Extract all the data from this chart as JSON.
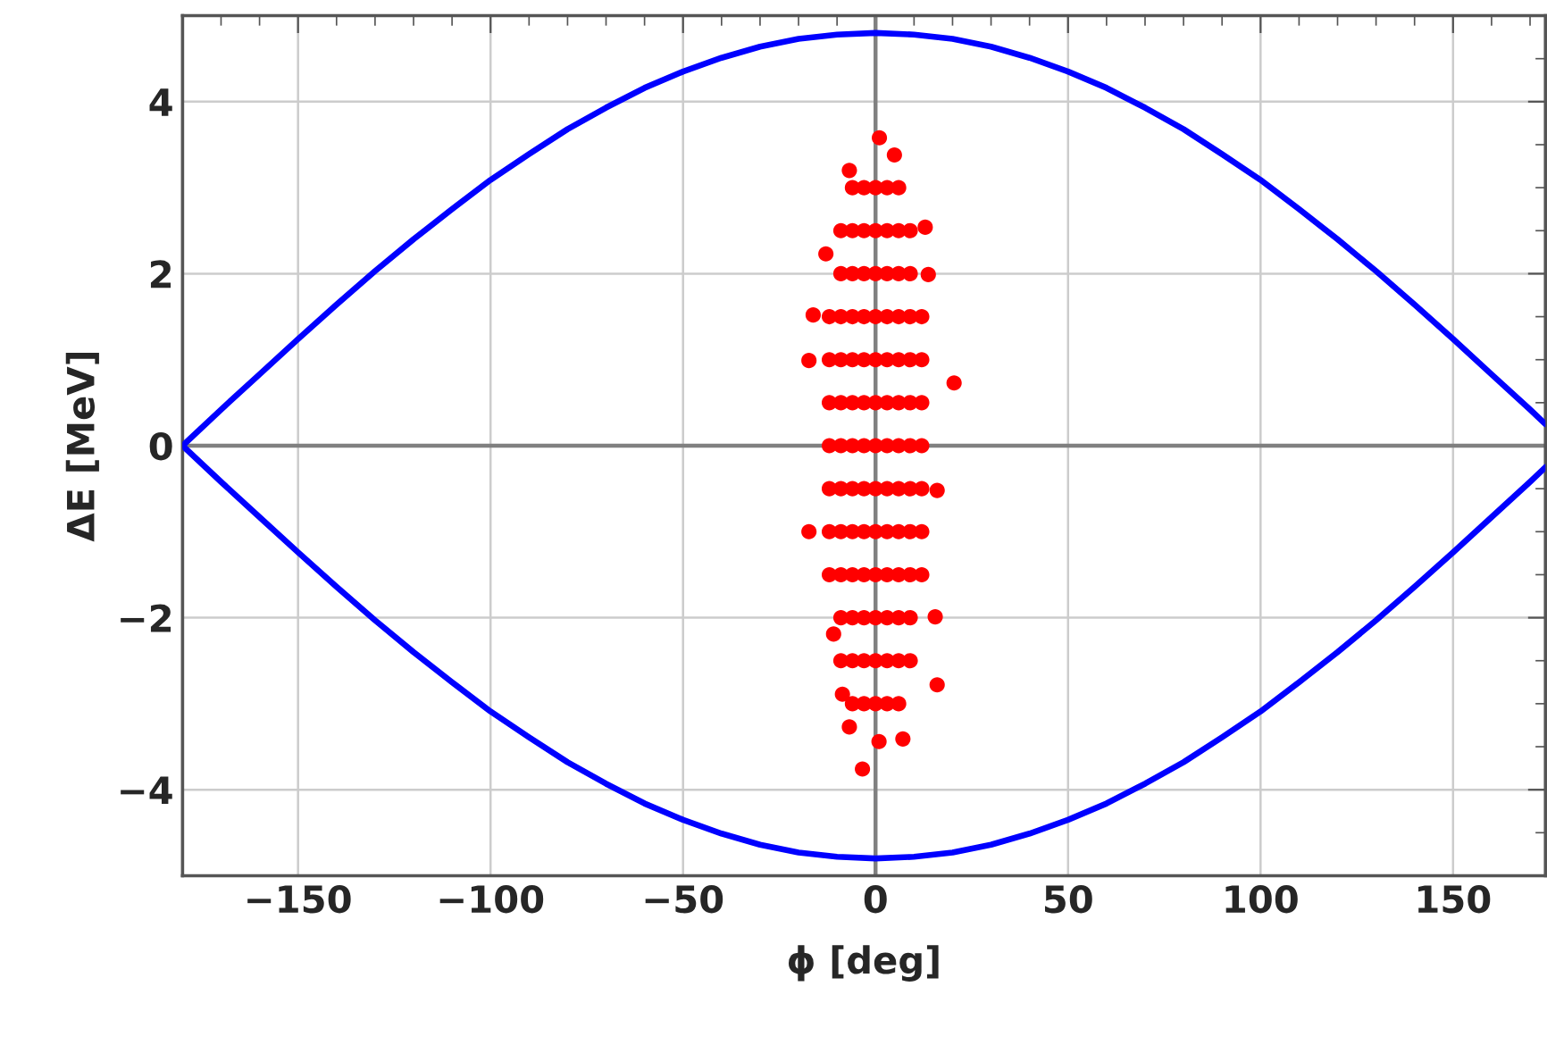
{
  "chart_data": {
    "type": "scatter",
    "xlabel": "ϕ [deg]",
    "ylabel": "ΔE [MeV]",
    "xlim": [
      -180,
      174
    ],
    "ylim": [
      -5,
      5
    ],
    "xticks": [
      -150,
      -100,
      -50,
      0,
      50,
      100,
      150
    ],
    "yticks": [
      -4,
      -2,
      0,
      2,
      4
    ],
    "grid": true,
    "legend": false,
    "series": [
      {
        "type": "line",
        "color": "#0000ff",
        "marker": "none",
        "line_style": "solid",
        "x": [
          -180,
          -170,
          -160,
          -150,
          -140,
          -130,
          -120,
          -110,
          -100,
          -90,
          -80,
          -70,
          -60,
          -50,
          -40,
          -30,
          -20,
          -10,
          0,
          10,
          20,
          30,
          40,
          50,
          60,
          70,
          80,
          90,
          100,
          110,
          120,
          130,
          140,
          150,
          160,
          170,
          174
        ],
        "values": [
          0,
          0.42,
          0.83,
          1.24,
          1.64,
          2.03,
          2.4,
          2.75,
          3.09,
          3.39,
          3.68,
          3.93,
          4.16,
          4.35,
          4.51,
          4.64,
          4.73,
          4.78,
          4.8,
          4.78,
          4.73,
          4.64,
          4.51,
          4.35,
          4.16,
          3.93,
          3.68,
          3.39,
          3.09,
          2.75,
          2.4,
          2.03,
          1.64,
          1.24,
          0.83,
          0.42,
          0.25
        ]
      },
      {
        "type": "line",
        "color": "#0000ff",
        "marker": "none",
        "line_style": "solid",
        "x": [
          -180,
          -170,
          -160,
          -150,
          -140,
          -130,
          -120,
          -110,
          -100,
          -90,
          -80,
          -70,
          -60,
          -50,
          -40,
          -30,
          -20,
          -10,
          0,
          10,
          20,
          30,
          40,
          50,
          60,
          70,
          80,
          90,
          100,
          110,
          120,
          130,
          140,
          150,
          160,
          170,
          174
        ],
        "values": [
          0,
          -0.42,
          -0.83,
          -1.24,
          -1.64,
          -2.03,
          -2.4,
          -2.75,
          -3.09,
          -3.39,
          -3.68,
          -3.93,
          -4.16,
          -4.35,
          -4.51,
          -4.64,
          -4.73,
          -4.78,
          -4.8,
          -4.78,
          -4.73,
          -4.64,
          -4.51,
          -4.35,
          -4.16,
          -3.93,
          -3.68,
          -3.39,
          -3.09,
          -2.75,
          -2.4,
          -2.03,
          -1.64,
          -1.24,
          -0.83,
          -0.42,
          -0.25
        ]
      },
      {
        "color": "#ff0000",
        "marker": "circle",
        "x": [
          -6,
          -3,
          0,
          3,
          6,
          -9,
          -6,
          -3,
          0,
          3,
          6,
          9,
          -9,
          -6,
          -3,
          0,
          3,
          6,
          9,
          -12,
          -9,
          -6,
          -3,
          0,
          3,
          6,
          9,
          12,
          -12,
          -9,
          -6,
          -3,
          0,
          3,
          6,
          9,
          12,
          -12,
          -9,
          -6,
          -3,
          0,
          3,
          6,
          9,
          12,
          -12,
          -9,
          -6,
          -3,
          0,
          3,
          6,
          9,
          12,
          -12,
          -9,
          -6,
          -3,
          0,
          3,
          6,
          9,
          12,
          -12,
          -9,
          -6,
          -3,
          0,
          3,
          6,
          9,
          12,
          -12,
          -9,
          -6,
          -3,
          0,
          3,
          6,
          9,
          12,
          -9,
          -6,
          -3,
          0,
          3,
          6,
          9,
          -9,
          -6,
          -3,
          0,
          3,
          6,
          9,
          -6,
          -3,
          0,
          3,
          6,
          1.0,
          4.9,
          -6.8,
          12.9,
          -12.9,
          13.7,
          -16.2,
          -17.3,
          20.4,
          -17.3,
          16.0,
          15.5,
          -10.9,
          16.0,
          -8.6,
          7.1,
          -6.8,
          -3.4,
          0.9
        ],
        "values": [
          3,
          3,
          3,
          3,
          3,
          2.5,
          2.5,
          2.5,
          2.5,
          2.5,
          2.5,
          2.5,
          2,
          2,
          2,
          2,
          2,
          2,
          2,
          1.5,
          1.5,
          1.5,
          1.5,
          1.5,
          1.5,
          1.5,
          1.5,
          1.5,
          1,
          1,
          1,
          1,
          1,
          1,
          1,
          1,
          1,
          0.5,
          0.5,
          0.5,
          0.5,
          0.5,
          0.5,
          0.5,
          0.5,
          0.5,
          0,
          0,
          0,
          0,
          0,
          0,
          0,
          0,
          0,
          -0.5,
          -0.5,
          -0.5,
          -0.5,
          -0.5,
          -0.5,
          -0.5,
          -0.5,
          -0.5,
          -1,
          -1,
          -1,
          -1,
          -1,
          -1,
          -1,
          -1,
          -1,
          -1.5,
          -1.5,
          -1.5,
          -1.5,
          -1.5,
          -1.5,
          -1.5,
          -1.5,
          -1.5,
          -2,
          -2,
          -2,
          -2,
          -2,
          -2,
          -2,
          -2.5,
          -2.5,
          -2.5,
          -2.5,
          -2.5,
          -2.5,
          -2.5,
          -3,
          -3,
          -3,
          -3,
          -3,
          3.58,
          3.38,
          3.2,
          2.54,
          2.23,
          1.99,
          1.52,
          0.99,
          0.73,
          -1.0,
          -0.52,
          -1.99,
          -2.19,
          -2.78,
          -2.89,
          -3.41,
          -3.27,
          -3.76,
          -3.44
        ]
      }
    ]
  }
}
